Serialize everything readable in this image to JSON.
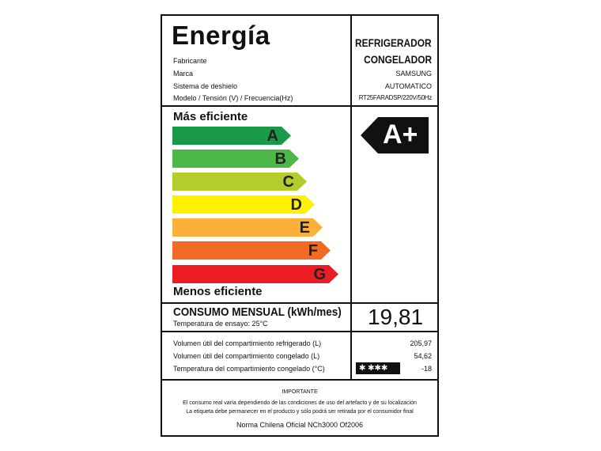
{
  "header": {
    "title": "Energía",
    "product_type_line1": "REFRIGERADOR",
    "product_type_line2": "CONGELADOR"
  },
  "info": [
    {
      "label": "Fabricante",
      "value": ""
    },
    {
      "label": "Marca",
      "value": "SAMSUNG"
    },
    {
      "label": "Sistema de deshielo",
      "value": "AUTOMATICO"
    },
    {
      "label": "Modelo / Tensión (V) / Frecuencia(Hz)",
      "value": "RT25FARADSP/220V/50Hz"
    }
  ],
  "scale": {
    "top_label": "Más eficiente",
    "bottom_label": "Menos eficiente",
    "classes": [
      {
        "letter": "A",
        "color": "#1a9a48"
      },
      {
        "letter": "B",
        "color": "#4db848"
      },
      {
        "letter": "C",
        "color": "#b4cc2c"
      },
      {
        "letter": "D",
        "color": "#fff100"
      },
      {
        "letter": "E",
        "color": "#fbb03a"
      },
      {
        "letter": "F",
        "color": "#f26a23"
      },
      {
        "letter": "G",
        "color": "#ec1c24"
      }
    ],
    "rating": "A+"
  },
  "consumption": {
    "label": "CONSUMO MENSUAL (kWh/mes)",
    "sub": "Temperatura de ensayo: 25°C",
    "value": "19,81"
  },
  "specs": [
    {
      "label": "Volumen útil del compartimiento refrigerado (L)",
      "value": "205,97"
    },
    {
      "label": "Volumen útil del compartimiento congelado (L)",
      "value": "54,62"
    },
    {
      "label": "Temperatura del compartimiento congelado (°C)",
      "value": "-18"
    }
  ],
  "freezer_stars": "✱ ✱✱✱",
  "footer": {
    "heading": "IMPORTANTE",
    "line1": "El consumo real varía dependiendo de las condiciones de uso del artefacto y de su localización",
    "line2": "La etiqueta debe permanecer en el producto y sólo podrá ser retirada por el consumidor final",
    "norm": "Norma Chilena Oficial NCh3000 Of2006"
  }
}
